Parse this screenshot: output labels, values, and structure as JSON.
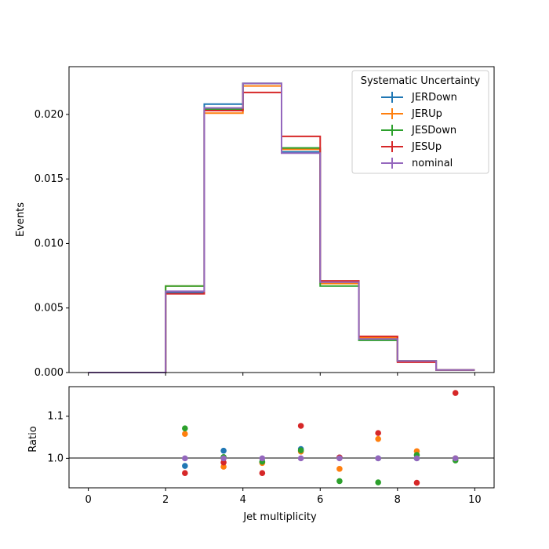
{
  "chart_data": [
    {
      "type": "line",
      "subtype": "step-histogram",
      "title": "",
      "xlabel": "",
      "ylabel": "Events",
      "xlim": [
        -0.5,
        10.5
      ],
      "ylim": [
        0,
        0.0237
      ],
      "bin_edges": [
        0,
        1,
        2,
        3,
        4,
        5,
        6,
        7,
        8,
        9,
        10
      ],
      "xticks": [
        0,
        2,
        4,
        6,
        8,
        10
      ],
      "xtick_labels_visible": false,
      "yticks": [
        0.0,
        0.005,
        0.01,
        0.015,
        0.02
      ],
      "ytick_labels": [
        "0.000",
        "0.005",
        "0.010",
        "0.015",
        "0.020"
      ],
      "grid": false,
      "legend": {
        "title": "Systematic Uncertainty",
        "placement": "top-right"
      },
      "series": [
        {
          "name": "JERDown",
          "color": "#1f77b4",
          "values": [
            0,
            0,
            0.0062,
            0.0208,
            0.0224,
            0.0171,
            0.007,
            0.0026,
            0.0009,
            0.0002
          ]
        },
        {
          "name": "JERUp",
          "color": "#ff7f0e",
          "values": [
            0,
            0,
            0.0067,
            0.0201,
            0.0222,
            0.0173,
            0.0069,
            0.0027,
            0.0009,
            0.0002
          ]
        },
        {
          "name": "JESDown",
          "color": "#2ca02c",
          "values": [
            0,
            0,
            0.0067,
            0.0204,
            0.0224,
            0.0174,
            0.0067,
            0.0025,
            0.0009,
            0.0002
          ]
        },
        {
          "name": "JESUp",
          "color": "#d62728",
          "values": [
            0,
            0,
            0.0061,
            0.0203,
            0.0217,
            0.0183,
            0.0071,
            0.0028,
            0.0008,
            0.0002
          ]
        },
        {
          "name": "nominal",
          "color": "#9467bd",
          "values": [
            0,
            0,
            0.0063,
            0.0205,
            0.0224,
            0.017,
            0.007,
            0.0026,
            0.0009,
            0.0002
          ]
        }
      ]
    },
    {
      "type": "scatter",
      "title": "",
      "xlabel": "Jet multiplicity",
      "ylabel": "Ratio",
      "xlim": [
        -0.5,
        10.5
      ],
      "ylim": [
        0.93,
        1.17
      ],
      "xticks": [
        0,
        2,
        4,
        6,
        8,
        10
      ],
      "xtick_labels": [
        "0",
        "2",
        "4",
        "6",
        "8",
        "10"
      ],
      "yticks": [
        1.0,
        1.1
      ],
      "ytick_labels": [
        "1.0",
        "1.1"
      ],
      "reference_line": 1.0,
      "grid": false,
      "x": [
        2.5,
        3.5,
        4.5,
        5.5,
        6.5,
        7.5,
        8.5,
        9.5
      ],
      "series": [
        {
          "name": "JERDown",
          "color": "#1f77b4",
          "values": [
            0.982,
            1.018,
            0.991,
            1.022,
            1.002,
            1.0,
            1.0,
            1.0
          ]
        },
        {
          "name": "JERUp",
          "color": "#ff7f0e",
          "values": [
            1.058,
            0.98,
            0.989,
            1.016,
            0.975,
            1.046,
            1.017,
            1.0
          ]
        },
        {
          "name": "JESDown",
          "color": "#2ca02c",
          "values": [
            1.071,
            1.003,
            0.992,
            1.019,
            0.946,
            0.943,
            1.008,
            0.995
          ]
        },
        {
          "name": "JESUp",
          "color": "#d62728",
          "values": [
            0.965,
            0.99,
            0.965,
            1.077,
            1.002,
            1.06,
            0.942,
            1.155
          ]
        },
        {
          "name": "nominal",
          "color": "#9467bd",
          "values": [
            1.0,
            1.0,
            1.0,
            1.0,
            1.0,
            1.0,
            1.0,
            1.0
          ]
        }
      ]
    }
  ]
}
